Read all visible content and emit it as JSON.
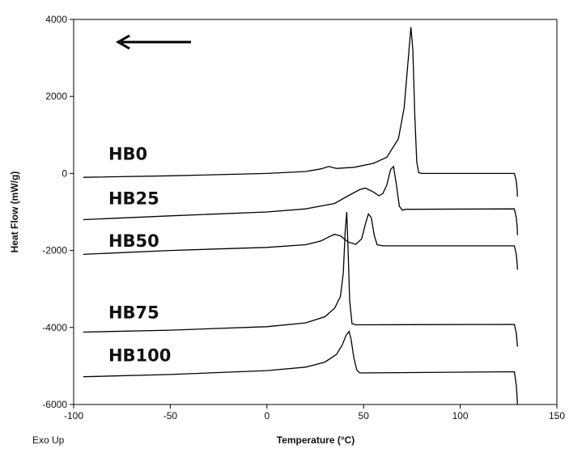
{
  "chart_data": {
    "type": "line",
    "xlabel": "Temperature (°C)",
    "ylabel": "Heat Flow (mW/g)",
    "corner_label": "Exo Up",
    "xlim": [
      -100,
      150
    ],
    "ylim": [
      -6000,
      4000
    ],
    "x_ticks": [
      "-100",
      "-50",
      "0",
      "50",
      "100",
      "150"
    ],
    "y_ticks": [
      "4000",
      "2000",
      "0",
      "-2000",
      "-4000",
      "-6000"
    ],
    "arrow_direction": "left",
    "grid": false,
    "series": [
      {
        "name": "HB0",
        "x": [
          -95,
          -50,
          0,
          20,
          28,
          32,
          36,
          45,
          55,
          62,
          68,
          71,
          73,
          74.5,
          75.5,
          76.5,
          77.5,
          78.5,
          80,
          128,
          129,
          129.5,
          129.6
        ],
        "y": [
          -100,
          -60,
          0,
          50,
          120,
          180,
          130,
          160,
          260,
          420,
          900,
          1700,
          2900,
          3800,
          3200,
          1500,
          300,
          20,
          0,
          0,
          -200,
          -450,
          -600
        ]
      },
      {
        "name": "HB25",
        "x": [
          -95,
          -50,
          0,
          20,
          35,
          42,
          48,
          51,
          55,
          58,
          60,
          62,
          64,
          65.5,
          67,
          68.5,
          70,
          72,
          128,
          129,
          129.5,
          129.6
        ],
        "y": [
          -1200,
          -1100,
          -1000,
          -920,
          -780,
          -580,
          -420,
          -380,
          -480,
          -580,
          -520,
          -300,
          100,
          180,
          -300,
          -850,
          -950,
          -930,
          -920,
          -1150,
          -1400,
          -1600
        ]
      },
      {
        "name": "HB50",
        "x": [
          -95,
          -50,
          0,
          20,
          28,
          32,
          35,
          38,
          42,
          46,
          49,
          51,
          52.5,
          54,
          55.5,
          57,
          60,
          128,
          129,
          129.5,
          129.6
        ],
        "y": [
          -2100,
          -2000,
          -1920,
          -1850,
          -1750,
          -1650,
          -1580,
          -1620,
          -1780,
          -1840,
          -1700,
          -1300,
          -1050,
          -1150,
          -1600,
          -1850,
          -1880,
          -1880,
          -2100,
          -2350,
          -2500
        ]
      },
      {
        "name": "HB75",
        "x": [
          -95,
          -50,
          0,
          20,
          30,
          35,
          38,
          39.5,
          40.5,
          41.3,
          42,
          42.8,
          44,
          46,
          128,
          129,
          129.5,
          129.6
        ],
        "y": [
          -4120,
          -4070,
          -3980,
          -3880,
          -3720,
          -3500,
          -3200,
          -2600,
          -1500,
          -1000,
          -2000,
          -3300,
          -3900,
          -3930,
          -3920,
          -4150,
          -4400,
          -4500
        ]
      },
      {
        "name": "HB100",
        "x": [
          -95,
          -50,
          0,
          20,
          30,
          36,
          39,
          41,
          42.5,
          43.5,
          45,
          46.5,
          48,
          128,
          129,
          129.5,
          129.6
        ],
        "y": [
          -5280,
          -5220,
          -5120,
          -5030,
          -4900,
          -4700,
          -4450,
          -4200,
          -4100,
          -4300,
          -4800,
          -5100,
          -5180,
          -5150,
          -5500,
          -5850,
          -6000
        ]
      }
    ],
    "label_positions_data": [
      {
        "name": "HB0",
        "x": -82,
        "y": 350
      },
      {
        "name": "HB25",
        "x": -82,
        "y": -800
      },
      {
        "name": "HB50",
        "x": -82,
        "y": -1900
      },
      {
        "name": "HB75",
        "x": -82,
        "y": -3760
      },
      {
        "name": "HB100",
        "x": -82,
        "y": -4880
      }
    ]
  }
}
